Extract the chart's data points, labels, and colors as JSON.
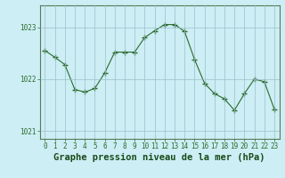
{
  "x": [
    0,
    1,
    2,
    3,
    4,
    5,
    6,
    7,
    8,
    9,
    10,
    11,
    12,
    13,
    14,
    15,
    16,
    17,
    18,
    19,
    20,
    21,
    22,
    23
  ],
  "y": [
    1022.55,
    1022.42,
    1022.28,
    1021.8,
    1021.75,
    1021.82,
    1022.12,
    1022.52,
    1022.52,
    1022.52,
    1022.8,
    1022.93,
    1023.05,
    1023.05,
    1022.92,
    1022.38,
    1021.92,
    1021.72,
    1021.62,
    1021.4,
    1021.72,
    1022.0,
    1021.95,
    1021.42
  ],
  "line_color": "#2d6a2d",
  "marker_color": "#2d6a2d",
  "bg_color": "#cceef4",
  "grid_color": "#9bbfcc",
  "xlabel": "Graphe pression niveau de la mer (hPa)",
  "xlabel_color": "#1a4a1a",
  "xlabel_fontsize": 7.5,
  "ylabel_ticks": [
    1021,
    1022,
    1023
  ],
  "ylim": [
    1020.85,
    1023.42
  ],
  "xlim": [
    -0.5,
    23.5
  ],
  "xtick_labels": [
    "0",
    "1",
    "2",
    "3",
    "4",
    "5",
    "6",
    "7",
    "8",
    "9",
    "10",
    "11",
    "12",
    "13",
    "14",
    "15",
    "16",
    "17",
    "18",
    "19",
    "20",
    "21",
    "22",
    "23"
  ],
  "tick_color": "#2d6a2d",
  "tick_fontsize": 5.5,
  "spine_color": "#5a7a5a"
}
